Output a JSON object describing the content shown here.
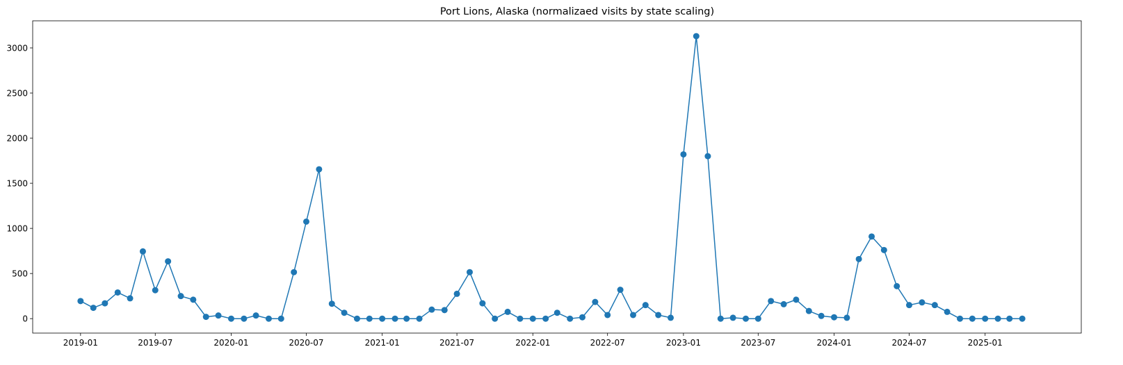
{
  "chart_data": {
    "type": "line",
    "title": "Port Lions, Alaska (normalizaed visits by state scaling)",
    "xlabel": "",
    "ylabel": "",
    "series_color": "#1f77b4",
    "marker": "circle",
    "grid": false,
    "legend": "none",
    "xlim": [
      "2018-09-07",
      "2025-08-22"
    ],
    "ylim": [
      -160,
      3300
    ],
    "x_ticks": [
      "2019-01",
      "2019-07",
      "2020-01",
      "2020-07",
      "2021-01",
      "2021-07",
      "2022-01",
      "2022-07",
      "2023-01",
      "2023-07",
      "2024-01",
      "2024-07",
      "2025-01"
    ],
    "y_ticks": [
      0,
      500,
      1000,
      1500,
      2000,
      2500,
      3000
    ],
    "x": [
      "2019-01",
      "2019-02",
      "2019-03",
      "2019-04",
      "2019-05",
      "2019-06",
      "2019-07",
      "2019-08",
      "2019-09",
      "2019-10",
      "2019-11",
      "2019-12",
      "2020-01",
      "2020-02",
      "2020-03",
      "2020-04",
      "2020-05",
      "2020-06",
      "2020-07",
      "2020-08",
      "2020-09",
      "2020-10",
      "2020-11",
      "2020-12",
      "2021-01",
      "2021-02",
      "2021-03",
      "2021-04",
      "2021-05",
      "2021-06",
      "2021-07",
      "2021-08",
      "2021-09",
      "2021-10",
      "2021-11",
      "2021-12",
      "2022-01",
      "2022-02",
      "2022-03",
      "2022-04",
      "2022-05",
      "2022-06",
      "2022-07",
      "2022-08",
      "2022-09",
      "2022-10",
      "2022-11",
      "2022-12",
      "2023-01",
      "2023-02",
      "2023-03",
      "2023-04",
      "2023-05",
      "2023-06",
      "2023-07",
      "2023-08",
      "2023-09",
      "2023-10",
      "2023-11",
      "2023-12",
      "2024-01",
      "2024-02",
      "2024-03",
      "2024-04",
      "2024-05",
      "2024-06",
      "2024-07",
      "2024-08",
      "2024-09",
      "2024-10",
      "2024-11",
      "2024-12",
      "2025-01",
      "2025-02",
      "2025-03",
      "2025-04"
    ],
    "values": [
      195,
      120,
      170,
      290,
      225,
      745,
      315,
      635,
      250,
      210,
      20,
      35,
      0,
      0,
      35,
      0,
      0,
      515,
      1075,
      1655,
      165,
      65,
      0,
      0,
      0,
      0,
      0,
      0,
      100,
      95,
      275,
      515,
      170,
      0,
      75,
      0,
      0,
      0,
      65,
      0,
      15,
      185,
      40,
      320,
      40,
      150,
      40,
      10,
      1820,
      3130,
      1800,
      0,
      10,
      0,
      0,
      195,
      160,
      210,
      85,
      30,
      15,
      10,
      660,
      910,
      760,
      360,
      150,
      180,
      150,
      75,
      0,
      0,
      0,
      0,
      0,
      0
    ]
  }
}
